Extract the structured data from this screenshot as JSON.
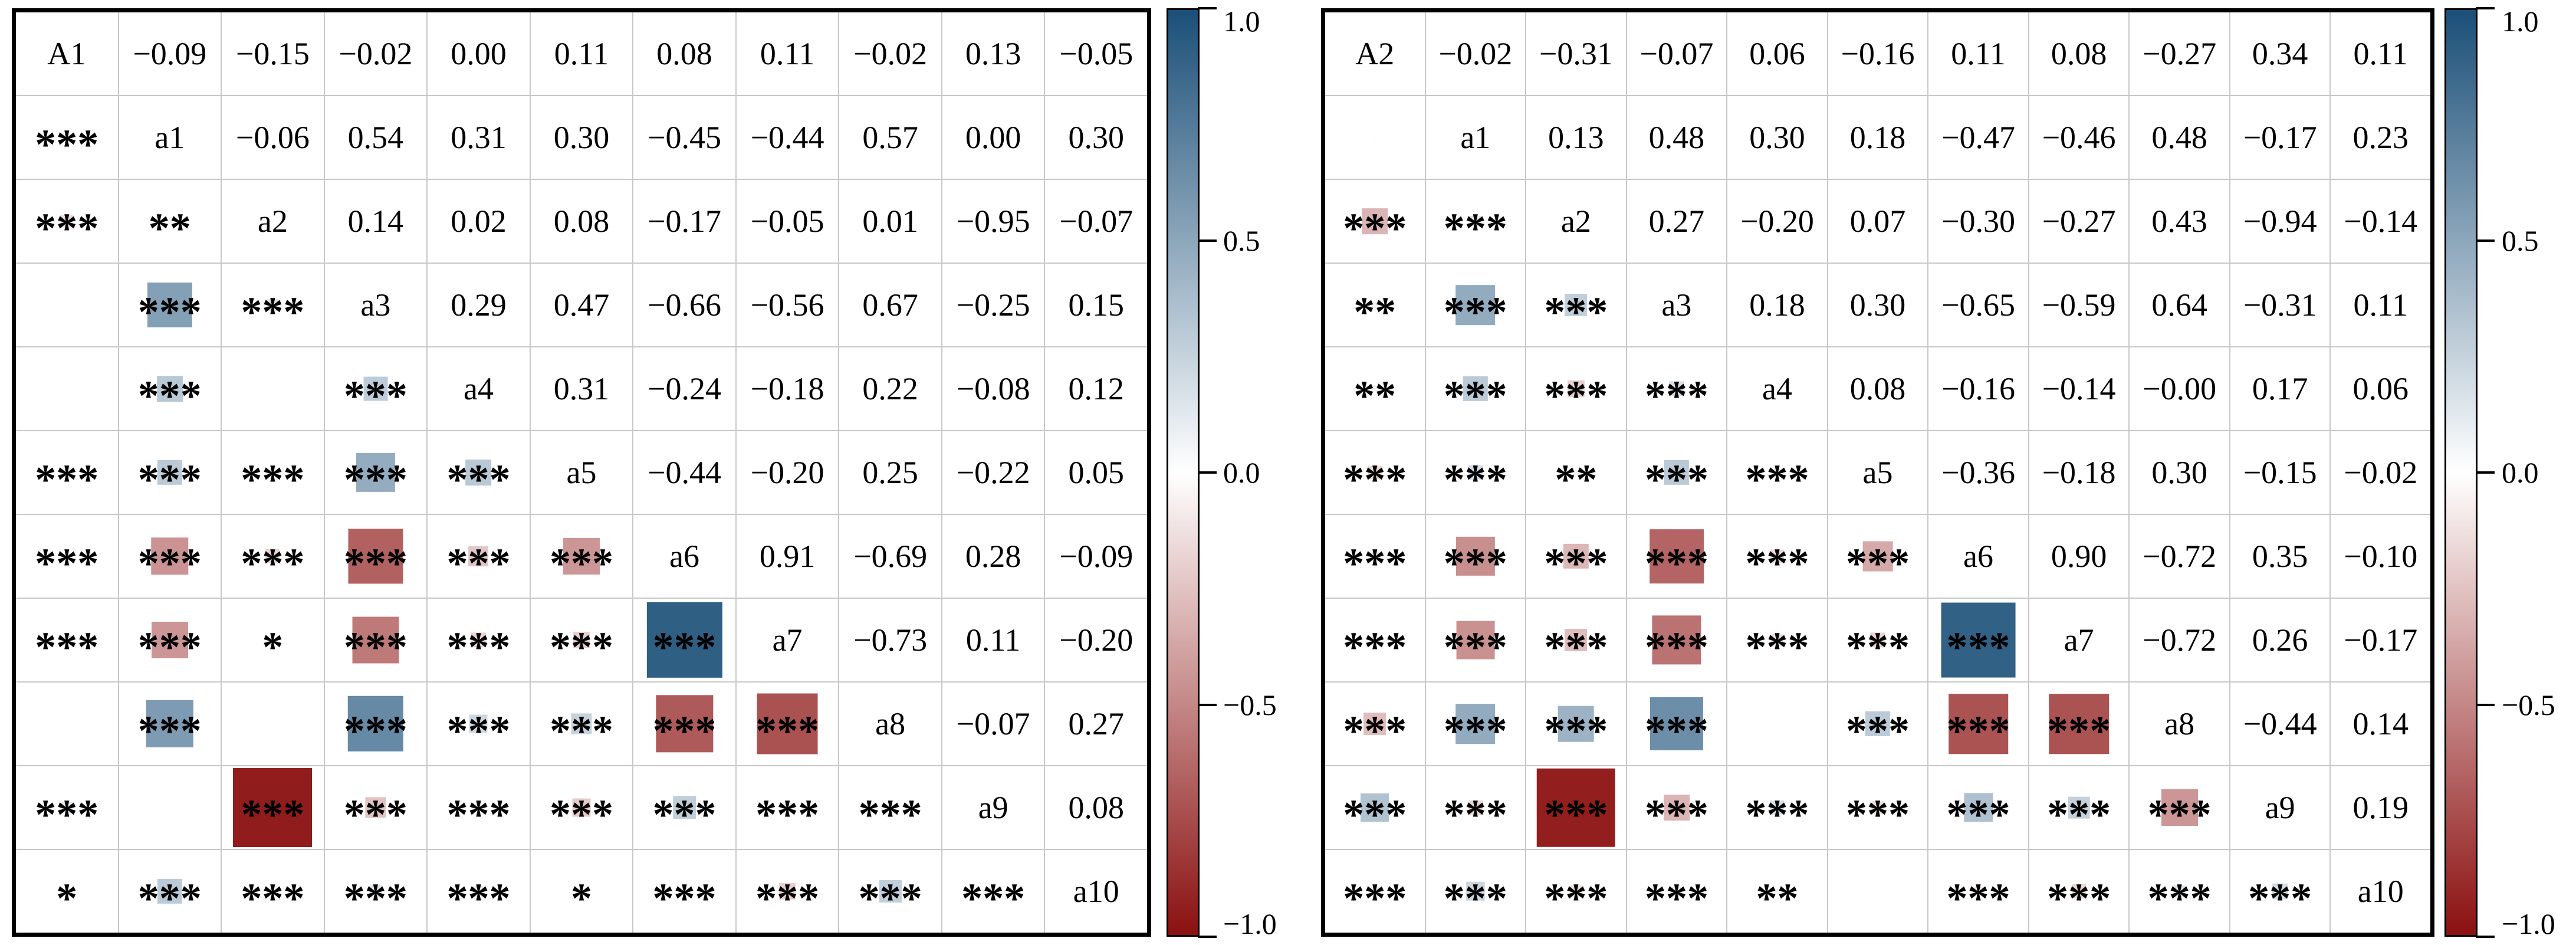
{
  "page": {
    "background": "#ffffff"
  },
  "colorbar": {
    "tick_labels": [
      "1.0",
      "0.5",
      "0.0",
      "-0.5",
      "-1.0"
    ],
    "top_color": "#1b4f78",
    "mid_color": "#ffffff",
    "bottom_color": "#8b1010",
    "border_color": "#000000"
  },
  "chart_data": [
    {
      "type": "heatmap",
      "panel": "left",
      "title": "",
      "diagonal_labels": [
        "A1",
        "a1",
        "a2",
        "a3",
        "a4",
        "a5",
        "a6",
        "a7",
        "a8",
        "a9",
        "a10"
      ],
      "upper_triangle_values": [
        [
          "-0.09",
          "-0.15",
          "-0.02",
          "0.00",
          "0.11",
          "0.08",
          "0.11",
          "-0.02",
          "0.13",
          "-0.05"
        ],
        [
          "-0.06",
          "0.54",
          "0.31",
          "0.30",
          "-0.45",
          "-0.44",
          "0.57",
          "0.00",
          "0.30"
        ],
        [
          "0.14",
          "0.02",
          "0.08",
          "-0.17",
          "-0.05",
          "0.01",
          "-0.95",
          "-0.07"
        ],
        [
          "0.29",
          "0.47",
          "-0.66",
          "-0.56",
          "0.67",
          "-0.25",
          "0.15"
        ],
        [
          "0.31",
          "-0.24",
          "-0.18",
          "0.22",
          "-0.08",
          "0.12"
        ],
        [
          "-0.44",
          "-0.20",
          "0.25",
          "-0.22",
          "0.05"
        ],
        [
          "0.91",
          "-0.69",
          "0.28",
          "-0.09"
        ],
        [
          "-0.73",
          "0.11",
          "-0.20"
        ],
        [
          "-0.07",
          "0.27"
        ],
        [
          "0.08"
        ]
      ],
      "lower_triangle_significance": [
        [
          "***"
        ],
        [
          "***",
          "**"
        ],
        [
          null,
          "***",
          "***"
        ],
        [
          null,
          "***",
          null,
          "***"
        ],
        [
          "***",
          "***",
          "***",
          "***",
          "***"
        ],
        [
          "***",
          "***",
          "***",
          "***",
          "***",
          "***"
        ],
        [
          "***",
          "***",
          "*",
          "***",
          "***",
          "***",
          "***"
        ],
        [
          null,
          "***",
          null,
          "***",
          "***",
          "***",
          "***",
          "***"
        ],
        [
          "***",
          null,
          "***",
          "***",
          "***",
          "***",
          "***",
          "***",
          "***"
        ],
        [
          "*",
          "***",
          "***",
          "***",
          "***",
          "*",
          "***",
          "***",
          "***",
          "***"
        ]
      ],
      "colorbar": {
        "min": -1.0,
        "max": 1.0,
        "ticks": [
          1.0,
          0.5,
          0.0,
          -0.5,
          -1.0
        ],
        "position": "right"
      },
      "legend": "square color = correlation sign (blue positive, red negative); square size = |r|; stars = significance"
    },
    {
      "type": "heatmap",
      "panel": "right",
      "title": "",
      "diagonal_labels": [
        "A2",
        "a1",
        "a2",
        "a3",
        "a4",
        "a5",
        "a6",
        "a7",
        "a8",
        "a9",
        "a10"
      ],
      "upper_triangle_values": [
        [
          "-0.02",
          "-0.31",
          "-0.07",
          "0.06",
          "-0.16",
          "0.11",
          "0.08",
          "-0.27",
          "0.34",
          "0.11"
        ],
        [
          "0.13",
          "0.48",
          "0.30",
          "0.18",
          "-0.47",
          "-0.46",
          "0.48",
          "-0.17",
          "0.23"
        ],
        [
          "0.27",
          "-0.20",
          "0.07",
          "-0.30",
          "-0.27",
          "0.43",
          "-0.94",
          "-0.14"
        ],
        [
          "0.18",
          "0.30",
          "-0.65",
          "-0.59",
          "0.64",
          "-0.31",
          "0.11"
        ],
        [
          "0.08",
          "-0.16",
          "-0.14",
          "-0.00",
          "0.17",
          "0.06"
        ],
        [
          "-0.36",
          "-0.18",
          "0.30",
          "-0.15",
          "-0.02"
        ],
        [
          "0.90",
          "-0.72",
          "0.35",
          "-0.10"
        ],
        [
          "-0.72",
          "0.26",
          "-0.17"
        ],
        [
          "-0.44",
          "0.14"
        ],
        [
          "0.19"
        ]
      ],
      "lower_triangle_significance": [
        [
          null
        ],
        [
          "***",
          "***"
        ],
        [
          "**",
          "***",
          "***"
        ],
        [
          "**",
          "***",
          "***",
          "***"
        ],
        [
          "***",
          "***",
          "**",
          "***",
          "***"
        ],
        [
          "***",
          "***",
          "***",
          "***",
          "***",
          "***"
        ],
        [
          "***",
          "***",
          "***",
          "***",
          "***",
          "***",
          "***"
        ],
        [
          "***",
          "***",
          "***",
          "***",
          null,
          "***",
          "***",
          "***"
        ],
        [
          "***",
          "***",
          "***",
          "***",
          "***",
          "***",
          "***",
          "***",
          "***"
        ],
        [
          "***",
          "***",
          "***",
          "***",
          "**",
          null,
          "***",
          "***",
          "***",
          "***"
        ]
      ],
      "colorbar": {
        "min": -1.0,
        "max": 1.0,
        "ticks": [
          1.0,
          0.5,
          0.0,
          -0.5,
          -1.0
        ],
        "position": "right"
      },
      "legend": "square color = correlation sign (blue positive, red negative); square size = |r|; stars = significance"
    }
  ]
}
